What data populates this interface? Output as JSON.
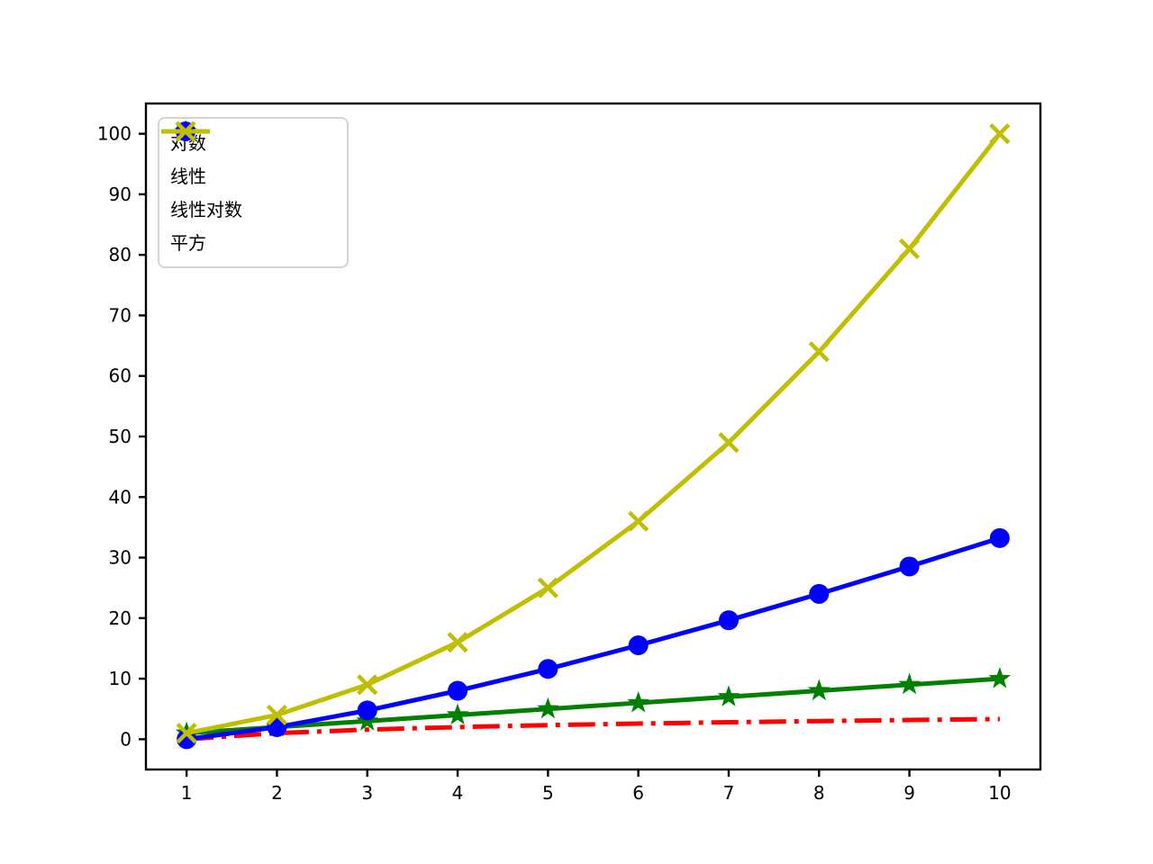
{
  "figure": {
    "background": "#ffffff",
    "axes_edge_color": "#000000",
    "tick_color": "#000000"
  },
  "chart_data": {
    "type": "line",
    "x": [
      1,
      2,
      3,
      4,
      5,
      6,
      7,
      8,
      9,
      10
    ],
    "series": [
      {
        "name": "对数",
        "color": "#ff0000",
        "linestyle": "dashdot",
        "marker": "none",
        "values": [
          0,
          1,
          1.585,
          2,
          2.322,
          2.585,
          2.807,
          3,
          3.17,
          3.322
        ]
      },
      {
        "name": "线性",
        "color": "#008000",
        "linestyle": "solid",
        "marker": "star",
        "values": [
          1,
          2,
          3,
          4,
          5,
          6,
          7,
          8,
          9,
          10
        ]
      },
      {
        "name": "线性对数",
        "color": "#0000ff",
        "linestyle": "solid",
        "marker": "circle",
        "values": [
          0,
          2,
          4.755,
          8,
          11.61,
          15.51,
          19.651,
          24,
          28.529,
          33.219
        ]
      },
      {
        "name": "平方",
        "color": "#bfbf00",
        "linestyle": "solid",
        "marker": "x",
        "values": [
          1,
          4,
          9,
          16,
          25,
          36,
          49,
          64,
          81,
          100
        ]
      }
    ],
    "xticks": [
      "1",
      "2",
      "3",
      "4",
      "5",
      "6",
      "7",
      "8",
      "9",
      "10"
    ],
    "yticks": [
      "0",
      "10",
      "20",
      "30",
      "40",
      "50",
      "60",
      "70",
      "80",
      "90",
      "100"
    ],
    "xlim": [
      0.55,
      10.45
    ],
    "ylim": [
      -5,
      105
    ],
    "grid": false,
    "legend_position": "upper-left"
  }
}
